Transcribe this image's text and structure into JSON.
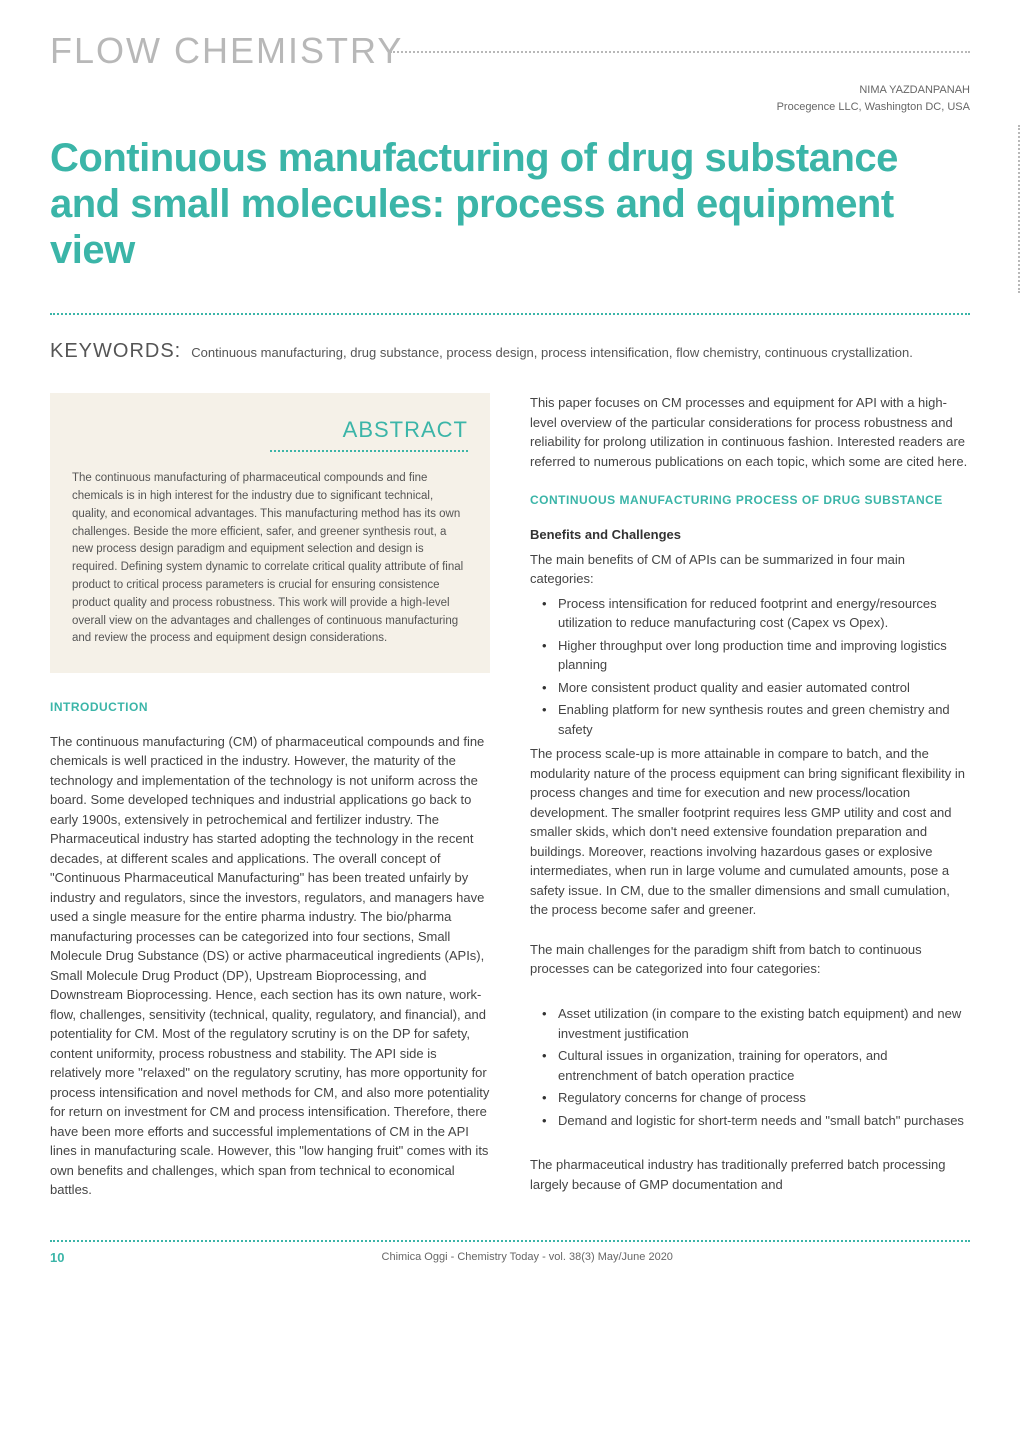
{
  "category": "FLOW CHEMISTRY",
  "author": {
    "name": "NIMA YAZDANPANAH",
    "affiliation": "Procegence LLC, Washington DC, USA"
  },
  "title": "Continuous manufacturing of drug substance and small molecules: process and equipment view",
  "keywords": {
    "label": "KEYWORDS:",
    "text": "Continuous manufacturing, drug substance, process design, process intensification, flow chemistry, continuous crystallization."
  },
  "abstract": {
    "label": "ABSTRACT",
    "text": "The continuous manufacturing of pharmaceutical compounds and fine chemicals is in high interest for the industry due to significant technical, quality, and economical advantages. This manufacturing method has its own challenges. Beside the more efficient, safer, and greener synthesis rout, a new process design paradigm and equipment selection and design is required. Defining system dynamic to correlate critical quality attribute of final product to critical process parameters is crucial for ensuring consistence product quality and process robustness. This work will provide a high-level overall view on the advantages and challenges of continuous manufacturing and review the process and equipment design considerations."
  },
  "sections": {
    "introduction": {
      "heading": "INTRODUCTION",
      "p1": "The continuous manufacturing (CM) of pharmaceutical compounds and fine chemicals is well practiced in the industry. However, the maturity of the technology and implementation of the technology is not uniform across the board. Some developed techniques and industrial applications go back to early 1900s, extensively in petrochemical and fertilizer industry. The Pharmaceutical industry has started adopting the technology in the recent decades, at different scales and applications. The overall concept of \"Continuous Pharmaceutical Manufacturing\" has been treated unfairly by industry and regulators, since the investors, regulators, and managers have used a single measure for the entire pharma industry. The bio/pharma manufacturing processes can be categorized into four sections, Small Molecule Drug Substance (DS) or active pharmaceutical ingredients (APIs), Small Molecule Drug Product (DP), Upstream Bioprocessing, and Downstream Bioprocessing. Hence, each section has its own nature, work-flow, challenges, sensitivity (technical, quality, regulatory, and financial), and potentiality for CM. Most of the regulatory scrutiny is on the DP for safety, content uniformity, process robustness and stability. The API side is relatively more \"relaxed\" on the regulatory scrutiny, has more opportunity for process intensification and novel methods for CM, and also more potentiality for return on investment for CM and process intensification. Therefore, there have been more efforts and successful implementations of CM in the API lines in manufacturing scale. However, this \"low hanging fruit\" comes with its own benefits and challenges, which span from technical to economical battles."
    },
    "col2_intro": "This paper focuses on CM processes and equipment for API with a high-level overview of the particular considerations for process robustness and reliability for prolong utilization in continuous fashion. Interested readers are referred to numerous publications on each topic, which some are cited here.",
    "cm_process": {
      "heading": "CONTINUOUS MANUFACTURING PROCESS OF DRUG SUBSTANCE",
      "sub1": "Benefits and Challenges",
      "p1": "The main benefits of CM of APIs can be summarized in four main categories:",
      "benefits": [
        "Process intensification for reduced footprint and energy/resources utilization to reduce manufacturing cost (Capex vs Opex).",
        "Higher throughput over long production time and improving logistics planning",
        "More consistent product quality and easier automated control",
        "Enabling platform for new synthesis routes and green chemistry and safety"
      ],
      "p2": "The process scale-up is more attainable in compare to batch, and the modularity nature of the process equipment can bring significant flexibility in process changes and time for execution and new process/location development. The smaller footprint requires less GMP utility and cost and smaller skids, which don't need extensive foundation preparation and buildings. Moreover, reactions involving hazardous gases or explosive intermediates, when run in large volume and cumulated amounts, pose a safety issue. In CM, due to the smaller dimensions and small cumulation, the process become safer and greener.",
      "p3": "The main challenges for the paradigm shift from batch to continuous processes can be categorized into four categories:",
      "challenges": [
        "Asset utilization (in compare to the existing batch equipment) and new investment justification",
        "Cultural issues in organization, training for operators, and entrenchment of batch operation practice",
        "Regulatory concerns for change of process",
        "Demand and logistic for short-term needs and \"small batch\" purchases"
      ],
      "p4": "The pharmaceutical industry has traditionally preferred batch processing largely because of GMP documentation and"
    }
  },
  "footer": {
    "page": "10",
    "text": "Chimica Oggi - Chemistry Today - vol. 38(3) May/June 2020"
  },
  "colors": {
    "accent": "#3bb5a8",
    "gray": "#b8b8b8",
    "abstract_bg": "#f5f1e8",
    "text": "#444"
  }
}
